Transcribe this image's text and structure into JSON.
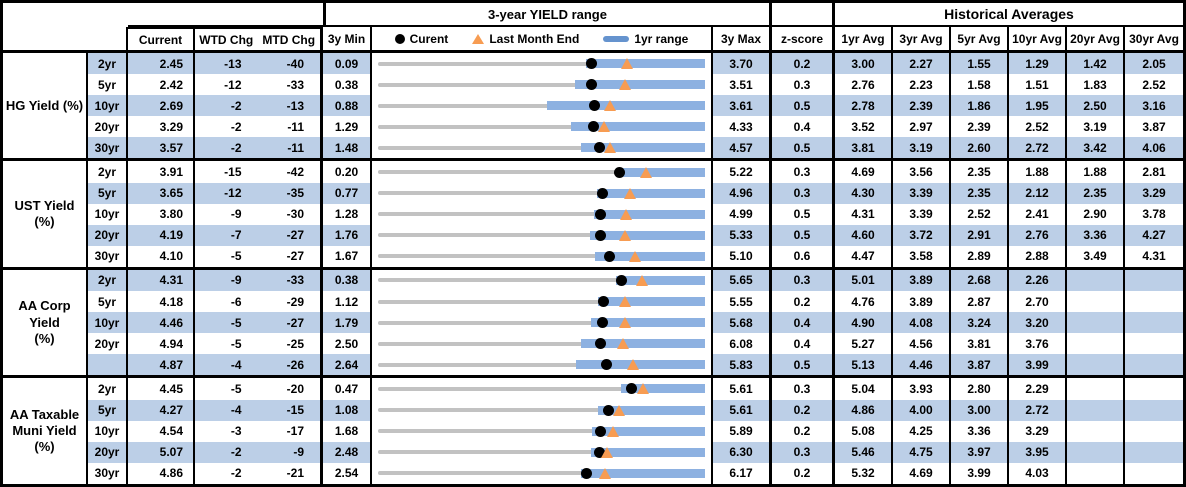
{
  "header": {
    "chart_group_title": "3-year YIELD range",
    "hist_group_title": "Historical Averages",
    "col_current": "Current",
    "col_wtd_chg": "WTD Chg",
    "col_mtd_chg": "MTD Chg",
    "col_3y_min": "3y Min",
    "col_3y_max": "3y Max",
    "col_z_score": "z-score",
    "avg_cols": [
      "1yr Avg",
      "3yr Avg",
      "5yr Avg",
      "10yr Avg",
      "20yr Avg",
      "30yr Avg"
    ],
    "legend": {
      "current_label": "Curent",
      "last_month_label": "Last Month End",
      "range_label": "1yr range"
    }
  },
  "colors": {
    "row_shade": "#BCCFE7",
    "bar_blue": "#8DB1E1",
    "legend_bar_blue": "#6593CE",
    "triangle_orange": "#F79C52",
    "track_gray": "#C2C2C2",
    "dot_black": "#000000"
  },
  "chart_data": {
    "type": "table",
    "title": "3-year YIELD range",
    "note": "Each row embeds a range strip: gray track spans 3y min to 3y max, blue bar is the 1yr range (yr1_low estimated from pixels; 1yr high equals 3y max), black dot is current, orange triangle is last month end (current minus MTD chg in bp). Displayed values: current, wtd, mtd, min, max, z, avgs.",
    "sections": [
      {
        "label": "HG Yield (%)",
        "rows": [
          {
            "tenor": "2yr",
            "current": "2.45",
            "wtd": "-13",
            "mtd": "-40",
            "min": "0.09",
            "max": "3.70",
            "z": "0.2",
            "avgs": [
              "3.00",
              "2.27",
              "1.55",
              "1.29",
              "1.42",
              "2.05"
            ],
            "yr1_low": 2.39,
            "last_month_end": 2.85
          },
          {
            "tenor": "5yr",
            "current": "2.42",
            "wtd": "-12",
            "mtd": "-33",
            "min": "0.38",
            "max": "3.51",
            "z": "0.3",
            "avgs": [
              "2.76",
              "2.23",
              "1.58",
              "1.51",
              "1.83",
              "2.52"
            ],
            "yr1_low": 2.27,
            "last_month_end": 2.75
          },
          {
            "tenor": "10yr",
            "current": "2.69",
            "wtd": "-2",
            "mtd": "-13",
            "min": "0.88",
            "max": "3.61",
            "z": "0.5",
            "avgs": [
              "2.78",
              "2.39",
              "1.86",
              "1.95",
              "2.50",
              "3.16"
            ],
            "yr1_low": 2.29,
            "last_month_end": 2.82
          },
          {
            "tenor": "20yr",
            "current": "3.29",
            "wtd": "-2",
            "mtd": "-11",
            "min": "1.29",
            "max": "4.33",
            "z": "0.4",
            "avgs": [
              "3.52",
              "2.97",
              "2.39",
              "2.52",
              "3.19",
              "3.87"
            ],
            "yr1_low": 3.08,
            "last_month_end": 3.4
          },
          {
            "tenor": "30yr",
            "current": "3.57",
            "wtd": "-2",
            "mtd": "-11",
            "min": "1.48",
            "max": "4.57",
            "z": "0.5",
            "avgs": [
              "3.81",
              "3.19",
              "2.60",
              "2.72",
              "3.42",
              "4.06"
            ],
            "yr1_low": 3.4,
            "last_month_end": 3.68
          }
        ]
      },
      {
        "label": "UST Yield (%)",
        "rows": [
          {
            "tenor": "2yr",
            "current": "3.91",
            "wtd": "-15",
            "mtd": "-42",
            "min": "0.20",
            "max": "5.22",
            "z": "0.3",
            "avgs": [
              "4.69",
              "3.56",
              "2.35",
              "1.88",
              "1.88",
              "2.81"
            ],
            "yr1_low": 3.85,
            "last_month_end": 4.33
          },
          {
            "tenor": "5yr",
            "current": "3.65",
            "wtd": "-12",
            "mtd": "-35",
            "min": "0.77",
            "max": "4.96",
            "z": "0.3",
            "avgs": [
              "4.30",
              "3.39",
              "2.35",
              "2.12",
              "2.35",
              "3.29"
            ],
            "yr1_low": 3.58,
            "last_month_end": 4.0
          },
          {
            "tenor": "10yr",
            "current": "3.80",
            "wtd": "-9",
            "mtd": "-30",
            "min": "1.28",
            "max": "4.99",
            "z": "0.5",
            "avgs": [
              "4.31",
              "3.39",
              "2.52",
              "2.41",
              "2.90",
              "3.78"
            ],
            "yr1_low": 3.73,
            "last_month_end": 4.1
          },
          {
            "tenor": "20yr",
            "current": "4.19",
            "wtd": "-7",
            "mtd": "-27",
            "min": "1.76",
            "max": "5.33",
            "z": "0.5",
            "avgs": [
              "4.60",
              "3.72",
              "2.91",
              "2.76",
              "3.36",
              "4.27"
            ],
            "yr1_low": 4.08,
            "last_month_end": 4.46
          },
          {
            "tenor": "30yr",
            "current": "4.10",
            "wtd": "-5",
            "mtd": "-27",
            "min": "1.67",
            "max": "5.10",
            "z": "0.6",
            "avgs": [
              "4.47",
              "3.58",
              "2.89",
              "2.88",
              "3.49",
              "4.31"
            ],
            "yr1_low": 3.95,
            "last_month_end": 4.37
          }
        ]
      },
      {
        "label": "AA Corp Yield\n(%)",
        "rows": [
          {
            "tenor": "2yr",
            "current": "4.31",
            "wtd": "-9",
            "mtd": "-33",
            "min": "0.38",
            "max": "5.65",
            "z": "0.3",
            "avgs": [
              "5.01",
              "3.89",
              "2.68",
              "2.26",
              "",
              ""
            ],
            "yr1_low": 4.21,
            "last_month_end": 4.64
          },
          {
            "tenor": "5yr",
            "current": "4.18",
            "wtd": "-6",
            "mtd": "-29",
            "min": "1.12",
            "max": "5.55",
            "z": "0.2",
            "avgs": [
              "4.76",
              "3.89",
              "2.87",
              "2.70",
              "",
              ""
            ],
            "yr1_low": 4.1,
            "last_month_end": 4.47
          },
          {
            "tenor": "10yr",
            "current": "4.46",
            "wtd": "-5",
            "mtd": "-27",
            "min": "1.79",
            "max": "5.68",
            "z": "0.4",
            "avgs": [
              "4.90",
              "4.08",
              "3.24",
              "3.20",
              "",
              ""
            ],
            "yr1_low": 4.33,
            "last_month_end": 4.73
          },
          {
            "tenor": "20yr",
            "current": "4.94",
            "wtd": "-5",
            "mtd": "-25",
            "min": "2.50",
            "max": "6.08",
            "z": "0.4",
            "avgs": [
              "5.27",
              "4.56",
              "3.81",
              "3.76",
              "",
              ""
            ],
            "yr1_low": 4.72,
            "last_month_end": 5.19
          },
          {
            "tenor": "",
            "current": "4.87",
            "wtd": "-4",
            "mtd": "-26",
            "min": "2.64",
            "max": "5.83",
            "z": "0.5",
            "avgs": [
              "5.13",
              "4.46",
              "3.87",
              "3.99",
              "",
              ""
            ],
            "yr1_low": 4.57,
            "last_month_end": 5.13
          }
        ]
      },
      {
        "label": "AA Taxable\nMuni Yield\n(%)",
        "rows": [
          {
            "tenor": "2yr",
            "current": "4.45",
            "wtd": "-5",
            "mtd": "-20",
            "min": "0.47",
            "max": "5.61",
            "z": "0.3",
            "avgs": [
              "5.04",
              "3.93",
              "2.80",
              "2.29",
              "",
              ""
            ],
            "yr1_low": 4.29,
            "last_month_end": 4.65
          },
          {
            "tenor": "5yr",
            "current": "4.27",
            "wtd": "-4",
            "mtd": "-15",
            "min": "1.08",
            "max": "5.61",
            "z": "0.2",
            "avgs": [
              "4.86",
              "4.00",
              "3.00",
              "2.72",
              "",
              ""
            ],
            "yr1_low": 4.13,
            "last_month_end": 4.42
          },
          {
            "tenor": "10yr",
            "current": "4.54",
            "wtd": "-3",
            "mtd": "-17",
            "min": "1.68",
            "max": "5.89",
            "z": "0.2",
            "avgs": [
              "5.08",
              "4.25",
              "3.36",
              "3.29",
              "",
              ""
            ],
            "yr1_low": 4.44,
            "last_month_end": 4.71
          },
          {
            "tenor": "20yr",
            "current": "5.07",
            "wtd": "-2",
            "mtd": "-9",
            "min": "2.48",
            "max": "6.30",
            "z": "0.3",
            "avgs": [
              "5.46",
              "4.75",
              "3.97",
              "3.95",
              "",
              ""
            ],
            "yr1_low": 4.97,
            "last_month_end": 5.16
          },
          {
            "tenor": "30yr",
            "current": "4.86",
            "wtd": "-2",
            "mtd": "-21",
            "min": "2.54",
            "max": "6.17",
            "z": "0.2",
            "avgs": [
              "5.32",
              "4.69",
              "3.99",
              "4.03",
              "",
              ""
            ],
            "yr1_low": 4.79,
            "last_month_end": 5.07
          }
        ]
      }
    ]
  }
}
